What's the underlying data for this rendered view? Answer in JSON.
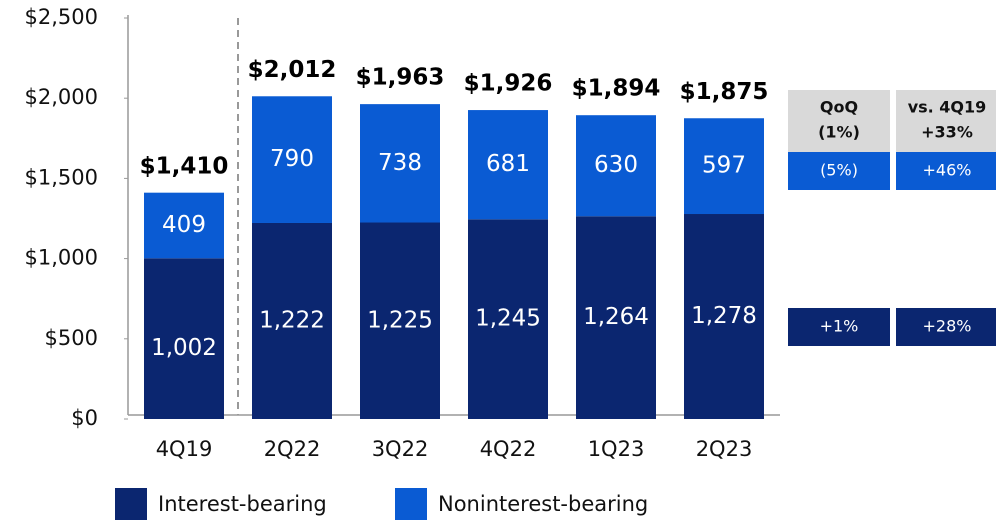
{
  "chart_data": {
    "type": "stacked_bar",
    "categories": [
      "4Q19",
      "2Q22",
      "3Q22",
      "4Q22",
      "1Q23",
      "2Q23"
    ],
    "series": [
      {
        "name": "Interest-bearing",
        "color": "#0b2670",
        "values": [
          1002,
          1222,
          1225,
          1245,
          1264,
          1278
        ],
        "value_labels": [
          "1,002",
          "1,222",
          "1,225",
          "1,245",
          "1,264",
          "1,278"
        ]
      },
      {
        "name": "Noninterest-bearing",
        "color": "#0a5bd3",
        "values": [
          409,
          790,
          738,
          681,
          630,
          597
        ]
      }
    ],
    "totals": [
      1410,
      2012,
      1963,
      1926,
      1894,
      1875
    ],
    "total_labels": [
      "$1,410",
      "$2,012",
      "$1,963",
      "$1,926",
      "$1,894",
      "$1,875"
    ],
    "ylim": [
      0,
      2500
    ],
    "yticks": [
      {
        "value": 0,
        "label": "$0"
      },
      {
        "value": 500,
        "label": "$500"
      },
      {
        "value": 1000,
        "label": "$1,000"
      },
      {
        "value": 1500,
        "label": "$1,500"
      },
      {
        "value": 2000,
        "label": "$2,000"
      },
      {
        "value": 2500,
        "label": "$2,500"
      }
    ],
    "comparison": {
      "headers": [
        "QoQ",
        "vs. 4Q19"
      ],
      "total": [
        "(1%)",
        "+33%"
      ],
      "noninterest": [
        "(5%)",
        "+46%"
      ],
      "interest": [
        "+1%",
        "+28%"
      ]
    }
  }
}
